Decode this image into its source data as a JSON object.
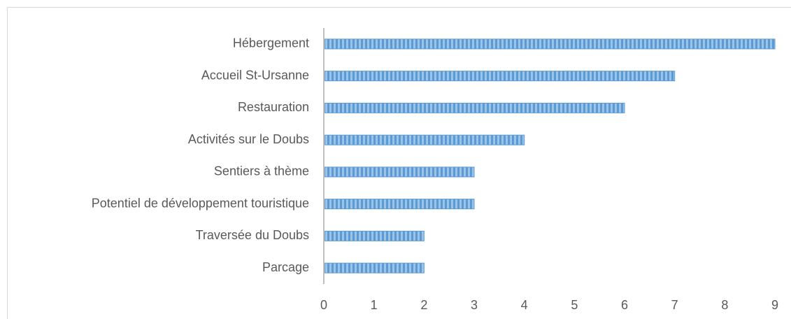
{
  "chart_data": {
    "type": "bar",
    "orientation": "horizontal",
    "categories": [
      "Hébergement",
      "Accueil St-Ursanne",
      "Restauration",
      "Activités sur le Doubs",
      "Sentiers à thème",
      "Potentiel de développement touristique",
      "Traversée du Doubs",
      "Parcage"
    ],
    "values": [
      9,
      7,
      6,
      4,
      3,
      3,
      2,
      2
    ],
    "color": "#5b9bd5",
    "xlim": [
      0,
      9
    ],
    "xticks": [
      0,
      1,
      2,
      3,
      4,
      5,
      6,
      7,
      8,
      9
    ],
    "grid": false
  }
}
